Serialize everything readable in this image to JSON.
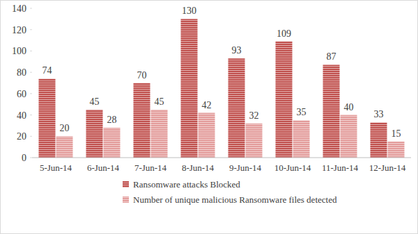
{
  "chart_data": {
    "type": "bar",
    "categories": [
      "5-Jun-14",
      "6-Jun-14",
      "7-Jun-14",
      "8-Jun-14",
      "9-Jun-14",
      "10-Jun-14",
      "11-Jun-14",
      "12-Jun-14"
    ],
    "series": [
      {
        "name": "Ransomware attacks Blocked",
        "color": "#c0504d",
        "values": [
          74,
          45,
          70,
          130,
          93,
          109,
          87,
          33
        ]
      },
      {
        "name": "Number of unique malicious Ransomware files detected",
        "color": "#e39b9a",
        "values": [
          20,
          28,
          45,
          42,
          32,
          35,
          40,
          15
        ]
      }
    ],
    "ylim": [
      0,
      140
    ],
    "yticks": [
      0,
      20,
      40,
      60,
      80,
      100,
      120,
      140
    ],
    "grid": false,
    "legend": "bottom",
    "data_labels": true
  }
}
